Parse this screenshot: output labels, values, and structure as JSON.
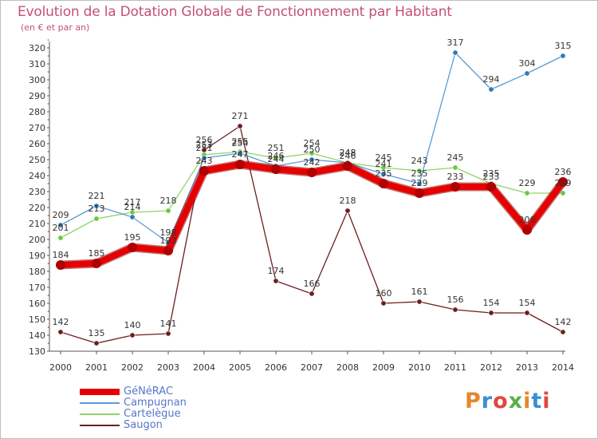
{
  "header": {
    "title": "Evolution de la Dotation Globale de Fonctionnement par Habitant",
    "subtitle": "(en € et par an)"
  },
  "brand": {
    "text": "Proxiti",
    "colors": [
      "#e4882a",
      "#3a8fd0",
      "#e0483c",
      "#5ab048",
      "#e4882a",
      "#3a8fd0",
      "#e0483c"
    ]
  },
  "chart_data": {
    "type": "line",
    "title": "Evolution de la Dotation Globale de Fonctionnement par Habitant",
    "subtitle": "(en € et par an)",
    "xlabel": "",
    "ylabel": "",
    "x": [
      "2000",
      "2001",
      "2002",
      "2003",
      "2004",
      "2005",
      "2006",
      "2007",
      "2008",
      "2009",
      "2010",
      "2011",
      "2012",
      "2013",
      "2014"
    ],
    "ylim": [
      130,
      320
    ],
    "yticks": [
      130,
      140,
      150,
      160,
      170,
      180,
      190,
      200,
      210,
      220,
      230,
      240,
      250,
      260,
      270,
      280,
      290,
      300,
      310,
      320
    ],
    "grid": false,
    "legend": "bottom-left",
    "series": [
      {
        "name": "GéNéRAC",
        "color": "#e60000",
        "style": "thick",
        "values": [
          184,
          185,
          195,
          193,
          243,
          247,
          244,
          242,
          246,
          235,
          229,
          233,
          233,
          206,
          236
        ]
      },
      {
        "name": "Campugnan",
        "color": "#5b9bd5",
        "marker": "#3278b8",
        "style": "thin",
        "values": [
          209,
          221,
          214,
          198,
          251,
          254,
          246,
          250,
          248,
          241,
          235,
          317,
          294,
          304,
          315
        ]
      },
      {
        "name": "Cartelègue",
        "color": "#8fd46a",
        "marker": "#6cc63c",
        "style": "thin",
        "values": [
          201,
          213,
          217,
          218,
          253,
          255,
          251,
          254,
          248,
          245,
          243,
          245,
          235,
          229,
          229
        ]
      },
      {
        "name": "Saugon",
        "color": "#6b1f1f",
        "marker": "#6b1f1f",
        "style": "thin",
        "values": [
          142,
          135,
          140,
          141,
          256,
          271,
          174,
          166,
          218,
          160,
          161,
          156,
          154,
          154,
          142
        ]
      }
    ]
  }
}
